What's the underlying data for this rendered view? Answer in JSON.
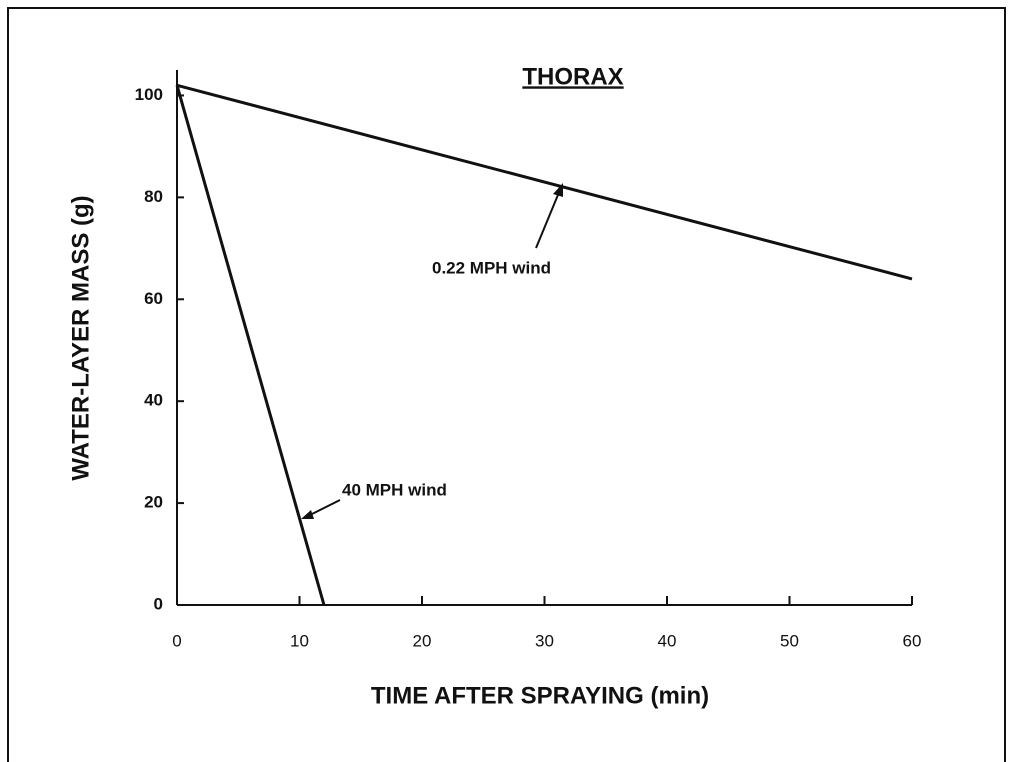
{
  "chart_data": {
    "type": "line",
    "title": "THORAX",
    "xlabel": "TIME AFTER SPRAYING (min)",
    "ylabel": "WATER-LAYER MASS (g)",
    "series": [
      {
        "name": "0.22 MPH wind",
        "color": "#111111",
        "x": [
          0,
          60
        ],
        "values": [
          102,
          64
        ]
      },
      {
        "name": "40 MPH wind",
        "color": "#111111",
        "x": [
          0,
          12
        ],
        "values": [
          102,
          0
        ]
      }
    ],
    "xlim": [
      0,
      60
    ],
    "xticks": [
      0,
      10,
      20,
      30,
      40,
      50,
      60
    ],
    "ylim": [
      0,
      105
    ],
    "yticks": [
      0,
      20,
      40,
      60,
      80,
      100
    ]
  }
}
